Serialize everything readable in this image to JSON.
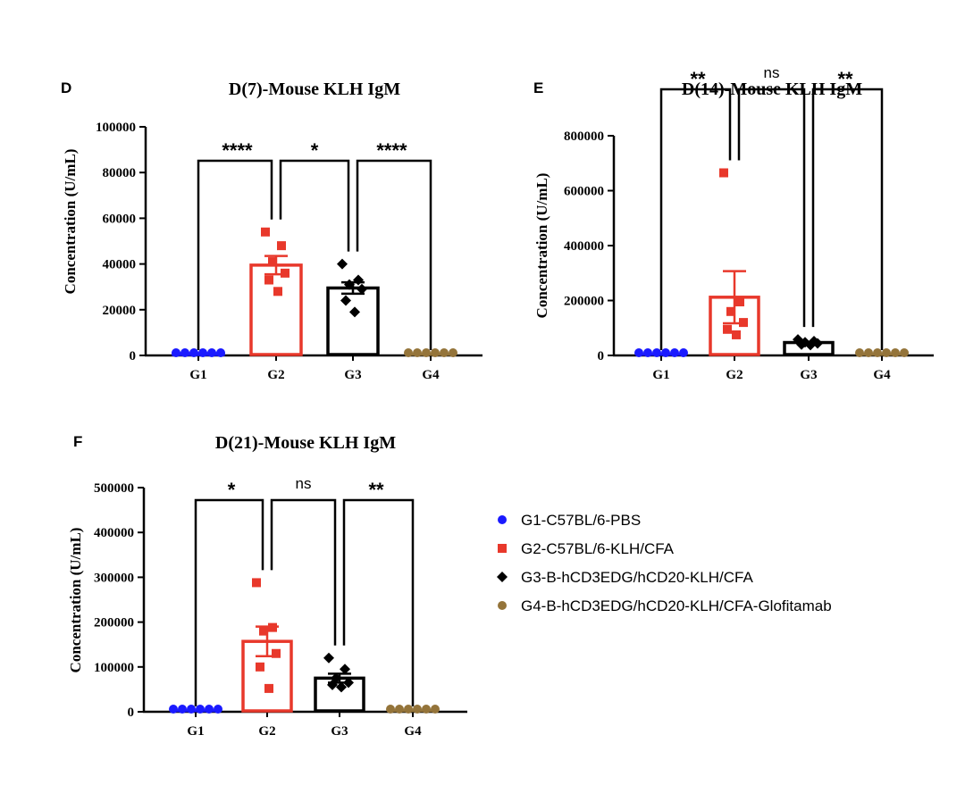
{
  "chart_data": [
    {
      "panel": "D",
      "type": "bar",
      "title": "D(7)-Mouse KLH IgM",
      "ylabel": "Concentration (U/mL)",
      "categories": [
        "G1",
        "G2",
        "G3",
        "G4"
      ],
      "yticks": [
        "0",
        "20000",
        "40000",
        "60000",
        "80000",
        "100000"
      ],
      "ylim": [
        0,
        100000
      ],
      "means": [
        800,
        39500,
        29500,
        100
      ],
      "sem": [
        300,
        4000,
        2500,
        50
      ],
      "points": [
        [
          500,
          900,
          1200,
          600,
          800,
          1000
        ],
        [
          54000,
          48000,
          41000,
          36000,
          33000,
          28000
        ],
        [
          40000,
          33000,
          31000,
          29000,
          24000,
          19000
        ],
        [
          100,
          100,
          100,
          100,
          100,
          100
        ]
      ],
      "comparisons": [
        {
          "from": "G1",
          "to": "G2",
          "label": "****"
        },
        {
          "from": "G2",
          "to": "G3",
          "label": "*"
        },
        {
          "from": "G3",
          "to": "G4",
          "label": "****"
        }
      ]
    },
    {
      "panel": "E",
      "type": "bar",
      "title": "D(14)-Mouse KLH IgM",
      "ylabel": "Concentration (U/mL)",
      "categories": [
        "G1",
        "G2",
        "G3",
        "G4"
      ],
      "yticks": [
        "0",
        "200000",
        "400000",
        "600000",
        "800000"
      ],
      "ylim": [
        0,
        800000
      ],
      "means": [
        2000,
        212000,
        47000,
        500
      ],
      "sem": [
        500,
        95000,
        5000,
        200
      ],
      "points": [
        [
          1000,
          1500,
          2000,
          2500,
          2000,
          1500
        ],
        [
          665000,
          195000,
          160000,
          120000,
          95000,
          75000
        ],
        [
          58000,
          52000,
          48000,
          44000,
          40000,
          38000
        ],
        [
          500,
          500,
          500,
          500,
          500,
          500
        ]
      ],
      "comparisons": [
        {
          "from": "G1",
          "to": "G2",
          "label": "**"
        },
        {
          "from": "G2",
          "to": "G3",
          "label": "ns"
        },
        {
          "from": "G3",
          "to": "G4",
          "label": "**"
        }
      ]
    },
    {
      "panel": "F",
      "type": "bar",
      "title": "D(21)-Mouse KLH IgM",
      "ylabel": "Concentration (U/mL)",
      "categories": [
        "G1",
        "G2",
        "G3",
        "G4"
      ],
      "yticks": [
        "0",
        "100000",
        "200000",
        "300000",
        "400000",
        "500000"
      ],
      "ylim": [
        0,
        500000
      ],
      "means": [
        2000,
        157000,
        75000,
        500
      ],
      "sem": [
        500,
        33000,
        10000,
        200
      ],
      "points": [
        [
          1500,
          2000,
          2500,
          2000,
          1500,
          2000
        ],
        [
          288000,
          188000,
          180000,
          130000,
          100000,
          52000
        ],
        [
          120000,
          95000,
          75000,
          65000,
          60000,
          55000
        ],
        [
          500,
          500,
          500,
          500,
          500,
          500
        ]
      ],
      "comparisons": [
        {
          "from": "G1",
          "to": "G2",
          "label": "*"
        },
        {
          "from": "G2",
          "to": "G3",
          "label": "ns"
        },
        {
          "from": "G3",
          "to": "G4",
          "label": "**"
        }
      ]
    }
  ],
  "groups": [
    {
      "key": "G1",
      "label": "G1-C57BL/6-PBS",
      "color": "#1a1aff",
      "marker": "circle",
      "bar": "#1a1aff"
    },
    {
      "key": "G2",
      "label": "G2-C57BL/6-KLH/CFA",
      "color": "#e8382b",
      "marker": "square",
      "bar": "#e8382b"
    },
    {
      "key": "G3",
      "label": "G3-B-hCD3EDG/hCD20-KLH/CFA",
      "color": "#000000",
      "marker": "diamond",
      "bar": "#000000"
    },
    {
      "key": "G4",
      "label": "G4-B-hCD3EDG/hCD20-KLH/CFA-Glofitamab",
      "color": "#94743a",
      "marker": "circle",
      "bar": "#94743a"
    }
  ]
}
